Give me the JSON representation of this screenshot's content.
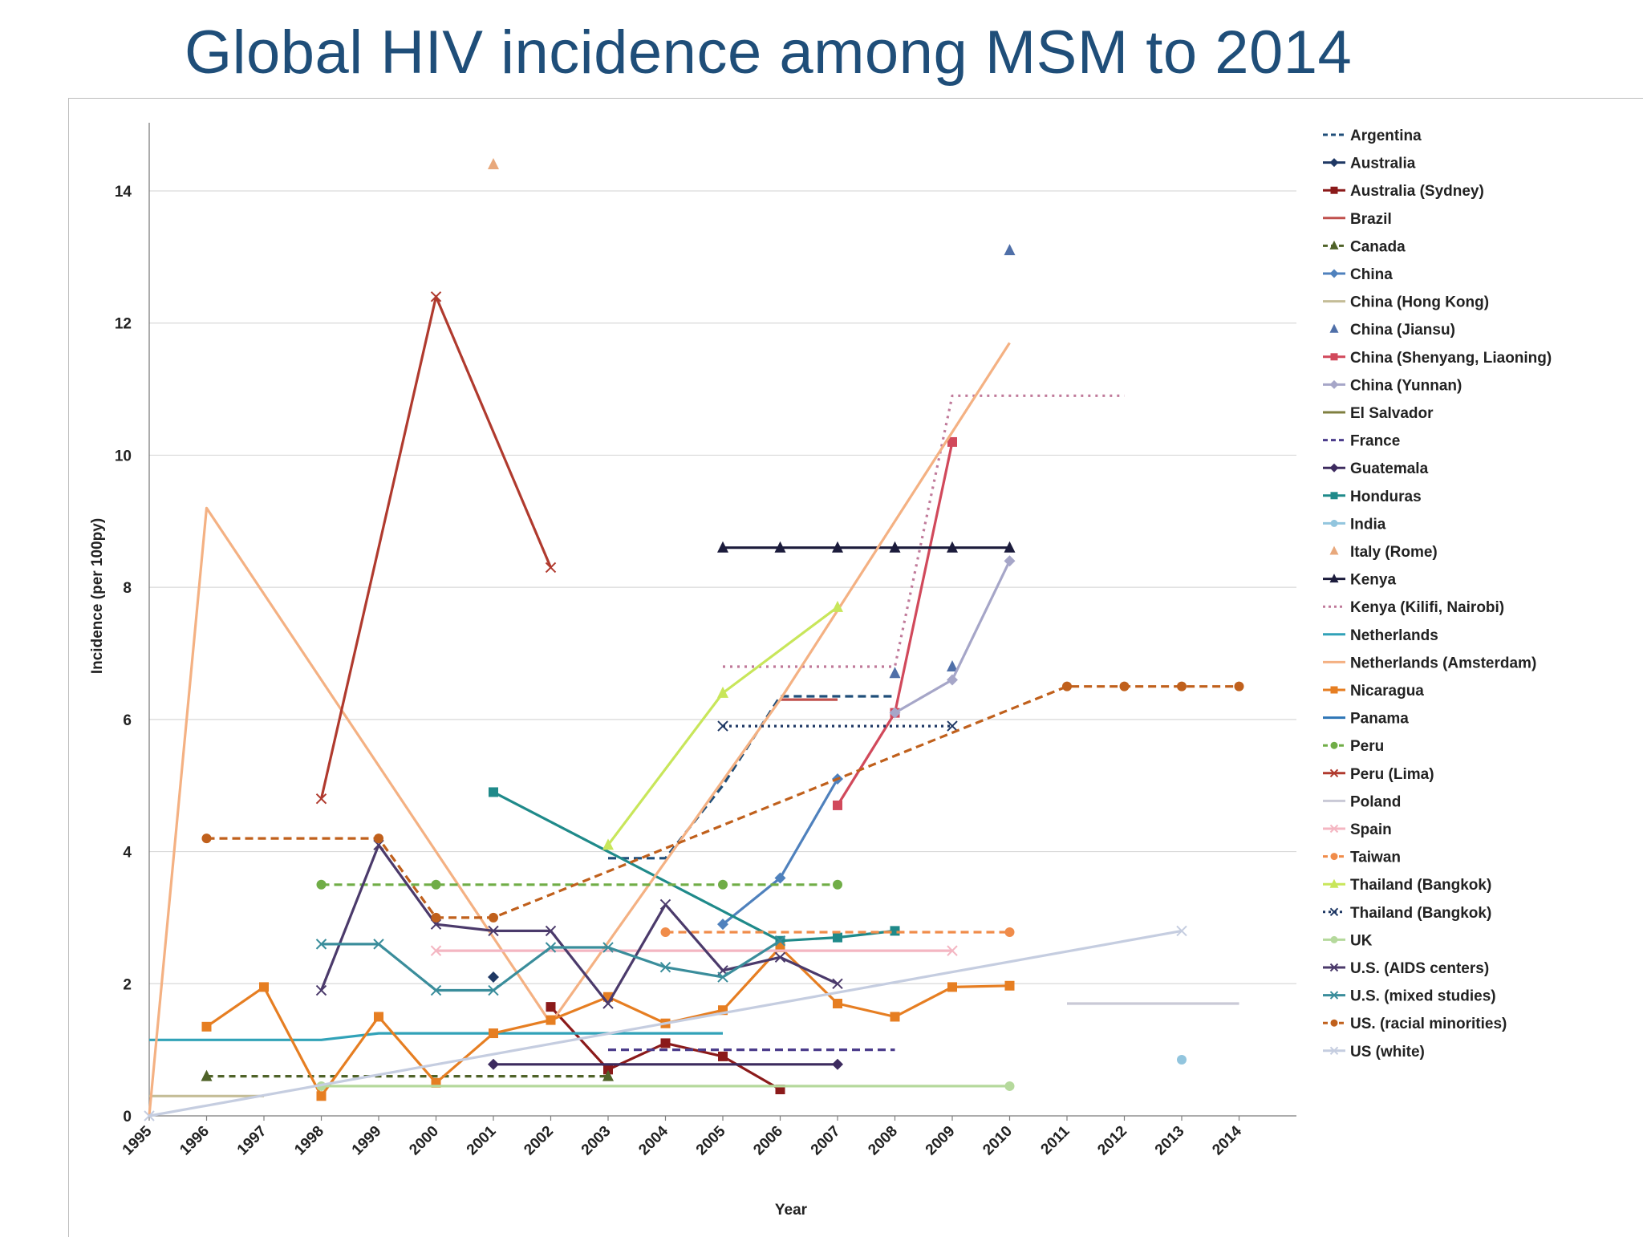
{
  "slide": {
    "title": "Global HIV incidence among MSM to 2014"
  },
  "colors": {
    "title": "#1f4e79",
    "grid": "#d9d9d9",
    "axis": "#7f7f7f"
  },
  "chart_data": {
    "type": "line",
    "title": "",
    "xlabel": "Year",
    "ylabel": "Incidence (per 100py)",
    "xlim": [
      1995,
      2014
    ],
    "ylim": [
      0,
      15
    ],
    "x_ticks": [
      "1995",
      "1996",
      "1997",
      "1998",
      "1999",
      "2000",
      "2001",
      "2002",
      "2003",
      "2004",
      "2005",
      "2006",
      "2007",
      "2008",
      "2009",
      "2010",
      "2011",
      "2012",
      "2013",
      "2014"
    ],
    "y_ticks": [
      0,
      2,
      4,
      6,
      8,
      10,
      12,
      14
    ],
    "grid": "horizontal",
    "legend_position": "right",
    "series": [
      {
        "name": "Argentina",
        "color": "#1f4e79",
        "dash": "10,6",
        "marker": "none",
        "points": [
          [
            2003,
            3.9
          ],
          [
            2004,
            3.9
          ],
          [
            2005,
            5.0
          ],
          [
            2006,
            6.35
          ],
          [
            2007,
            6.35
          ],
          [
            2008,
            6.35
          ]
        ]
      },
      {
        "name": "Australia",
        "color": "#1f3864",
        "dash": "",
        "marker": "diamond",
        "points": [
          [
            2001,
            2.1
          ]
        ]
      },
      {
        "name": "Australia (Sydney)",
        "color": "#8b1a1a",
        "dash": "",
        "marker": "square",
        "points": [
          [
            2002,
            1.65
          ],
          [
            2003,
            0.7
          ],
          [
            2004,
            1.1
          ],
          [
            2005,
            0.9
          ],
          [
            2006,
            0.4
          ]
        ]
      },
      {
        "name": "Brazil",
        "color": "#c0504d",
        "dash": "",
        "marker": "none",
        "points": [
          [
            2006,
            6.3
          ],
          [
            2007,
            6.3
          ]
        ]
      },
      {
        "name": "Canada",
        "color": "#4f6228",
        "dash": "8,6",
        "marker": "triangle",
        "points": [
          [
            1996,
            0.6
          ],
          [
            2003,
            0.6
          ]
        ]
      },
      {
        "name": "China",
        "color": "#4f81bd",
        "dash": "",
        "marker": "diamond",
        "points": [
          [
            2005,
            2.9
          ],
          [
            2006,
            3.6
          ],
          [
            2007,
            5.1
          ]
        ]
      },
      {
        "name": "China (Hong Kong)",
        "color": "#c4bd97",
        "dash": "",
        "marker": "none",
        "points": [
          [
            1995,
            0.3
          ],
          [
            1997,
            0.3
          ]
        ]
      },
      {
        "name": "China (Jiansu)",
        "color": "#4f6fa8",
        "dash": "",
        "marker": "triangle",
        "nolines": true,
        "points": [
          [
            2010,
            13.1
          ],
          [
            2008,
            6.7
          ],
          [
            2009,
            6.8
          ]
        ]
      },
      {
        "name": "China (Shenyang, Liaoning)",
        "color": "#d1495b",
        "dash": "",
        "marker": "square",
        "points": [
          [
            2007,
            4.7
          ],
          [
            2008,
            6.1
          ],
          [
            2009,
            10.2
          ]
        ]
      },
      {
        "name": "China (Yunnan)",
        "color": "#a6a6c8",
        "dash": "",
        "marker": "diamond",
        "points": [
          [
            2008,
            6.1
          ],
          [
            2009,
            6.6
          ],
          [
            2010,
            8.4
          ]
        ]
      },
      {
        "name": "El Salvador",
        "color": "#7f7f3f",
        "dash": "",
        "marker": "none",
        "points": []
      },
      {
        "name": "France",
        "color": "#4b3c8b",
        "dash": "10,6",
        "marker": "none",
        "points": [
          [
            2003,
            1.0
          ],
          [
            2008,
            1.0
          ]
        ]
      },
      {
        "name": "Guatemala",
        "color": "#3d2b5f",
        "dash": "",
        "marker": "diamond",
        "points": [
          [
            2001,
            0.78
          ],
          [
            2007,
            0.78
          ]
        ]
      },
      {
        "name": "Honduras",
        "color": "#1f8a8a",
        "dash": "",
        "marker": "square",
        "points": [
          [
            2001,
            4.9
          ],
          [
            2006,
            2.65
          ],
          [
            2007,
            2.7
          ],
          [
            2008,
            2.8
          ]
        ]
      },
      {
        "name": "India",
        "color": "#92c5de",
        "dash": "",
        "marker": "circle",
        "points": [
          [
            2013,
            0.85
          ]
        ]
      },
      {
        "name": "Italy (Rome)",
        "color": "#e8a87c",
        "dash": "",
        "marker": "triangle",
        "nolines": true,
        "points": [
          [
            2001,
            14.4
          ]
        ]
      },
      {
        "name": "Kenya",
        "color": "#1c1c3c",
        "dash": "",
        "marker": "triangle",
        "points": [
          [
            2005,
            8.6
          ],
          [
            2006,
            8.6
          ],
          [
            2007,
            8.6
          ],
          [
            2008,
            8.6
          ],
          [
            2009,
            8.6
          ],
          [
            2010,
            8.6
          ]
        ]
      },
      {
        "name": "Kenya (Kilifi, Nairobi)",
        "color": "#c07a9a",
        "dash": "3,6",
        "marker": "none",
        "points": [
          [
            2005,
            6.8
          ],
          [
            2008,
            6.8
          ],
          [
            2009,
            10.9
          ],
          [
            2012,
            10.9
          ]
        ]
      },
      {
        "name": "Netherlands",
        "color": "#31a2b8",
        "dash": "",
        "marker": "none",
        "points": [
          [
            1995,
            1.15
          ],
          [
            1998,
            1.15
          ],
          [
            1999,
            1.25
          ],
          [
            2005,
            1.25
          ]
        ]
      },
      {
        "name": "Netherlands (Amsterdam)",
        "color": "#f4b183",
        "dash": "",
        "marker": "none",
        "points": [
          [
            1995,
            0.0
          ],
          [
            1996,
            9.2
          ],
          [
            2002,
            1.4
          ],
          [
            2006,
            6.3
          ],
          [
            2010,
            11.7
          ]
        ]
      },
      {
        "name": "Nicaragua",
        "color": "#e67e22",
        "dash": "",
        "marker": "square",
        "points": [
          [
            1996,
            1.35
          ],
          [
            1997,
            1.95
          ],
          [
            1998,
            0.3
          ],
          [
            1999,
            1.5
          ],
          [
            2000,
            0.5
          ],
          [
            2001,
            1.25
          ],
          [
            2002,
            1.45
          ],
          [
            2003,
            1.8
          ],
          [
            2004,
            1.4
          ],
          [
            2005,
            1.6
          ],
          [
            2006,
            2.55
          ],
          [
            2007,
            1.7
          ],
          [
            2008,
            1.5
          ],
          [
            2009,
            1.95
          ],
          [
            2010,
            1.97
          ]
        ]
      },
      {
        "name": "Panama",
        "color": "#2e75b6",
        "dash": "",
        "marker": "none",
        "points": []
      },
      {
        "name": "Peru",
        "color": "#70ad47",
        "dash": "10,6",
        "marker": "circle",
        "points": [
          [
            1998,
            3.5
          ],
          [
            2000,
            3.5
          ],
          [
            2005,
            3.5
          ],
          [
            2007,
            3.5
          ]
        ]
      },
      {
        "name": "Peru (Lima)",
        "color": "#b03a2e",
        "dash": "",
        "marker": "x",
        "points": [
          [
            1998,
            4.8
          ],
          [
            2000,
            12.4
          ],
          [
            2002,
            8.3
          ]
        ]
      },
      {
        "name": "Poland",
        "color": "#c9c9d6",
        "dash": "",
        "marker": "none",
        "points": [
          [
            2011,
            1.7
          ],
          [
            2014,
            1.7
          ]
        ]
      },
      {
        "name": "Spain",
        "color": "#f4b6c2",
        "dash": "",
        "marker": "x",
        "points": [
          [
            2000,
            2.5
          ],
          [
            2009,
            2.5
          ]
        ]
      },
      {
        "name": "Taiwan",
        "color": "#f08c4a",
        "dash": "10,6",
        "marker": "circle",
        "points": [
          [
            2004,
            2.78
          ],
          [
            2010,
            2.78
          ]
        ]
      },
      {
        "name": "Thailand (Bangkok)",
        "color": "#c8e65a",
        "dash": "",
        "marker": "triangle",
        "points": [
          [
            2003,
            4.1
          ],
          [
            2005,
            6.4
          ],
          [
            2007,
            7.7
          ]
        ]
      },
      {
        "name": "Thailand (Bangkok)",
        "color": "#1f3864",
        "dash": "3,5",
        "marker": "x",
        "points": [
          [
            2005,
            5.9
          ],
          [
            2009,
            5.9
          ]
        ]
      },
      {
        "name": "UK",
        "color": "#b5d99c",
        "dash": "",
        "marker": "circle",
        "points": [
          [
            1998,
            0.45
          ],
          [
            2010,
            0.45
          ]
        ]
      },
      {
        "name": "U.S. (AIDS centers)",
        "color": "#4b3a6b",
        "dash": "",
        "marker": "x",
        "points": [
          [
            1998,
            1.9
          ],
          [
            1999,
            4.1
          ],
          [
            2000,
            2.9
          ],
          [
            2001,
            2.8
          ],
          [
            2002,
            2.8
          ],
          [
            2003,
            1.7
          ],
          [
            2004,
            3.2
          ],
          [
            2005,
            2.2
          ],
          [
            2006,
            2.4
          ],
          [
            2007,
            2.0
          ]
        ]
      },
      {
        "name": "U.S. (mixed studies)",
        "color": "#3a8d9b",
        "dash": "",
        "marker": "x",
        "points": [
          [
            1998,
            2.6
          ],
          [
            1999,
            2.6
          ],
          [
            2000,
            1.9
          ],
          [
            2001,
            1.9
          ],
          [
            2002,
            2.55
          ],
          [
            2003,
            2.55
          ],
          [
            2004,
            2.25
          ],
          [
            2005,
            2.1
          ],
          [
            2006,
            2.65
          ]
        ]
      },
      {
        "name": "US. (racial minorities)",
        "color": "#c0601c",
        "dash": "10,6",
        "marker": "circle",
        "points": [
          [
            1996,
            4.2
          ],
          [
            1999,
            4.2
          ],
          [
            2000,
            3.0
          ],
          [
            2001,
            3.0
          ],
          [
            2011,
            6.5
          ],
          [
            2012,
            6.5
          ],
          [
            2013,
            6.5
          ],
          [
            2014,
            6.5
          ]
        ]
      },
      {
        "name": "US (white)",
        "color": "#c5cde0",
        "dash": "",
        "marker": "x",
        "points": [
          [
            1995,
            0.0
          ],
          [
            2013,
            2.8
          ]
        ]
      }
    ]
  }
}
